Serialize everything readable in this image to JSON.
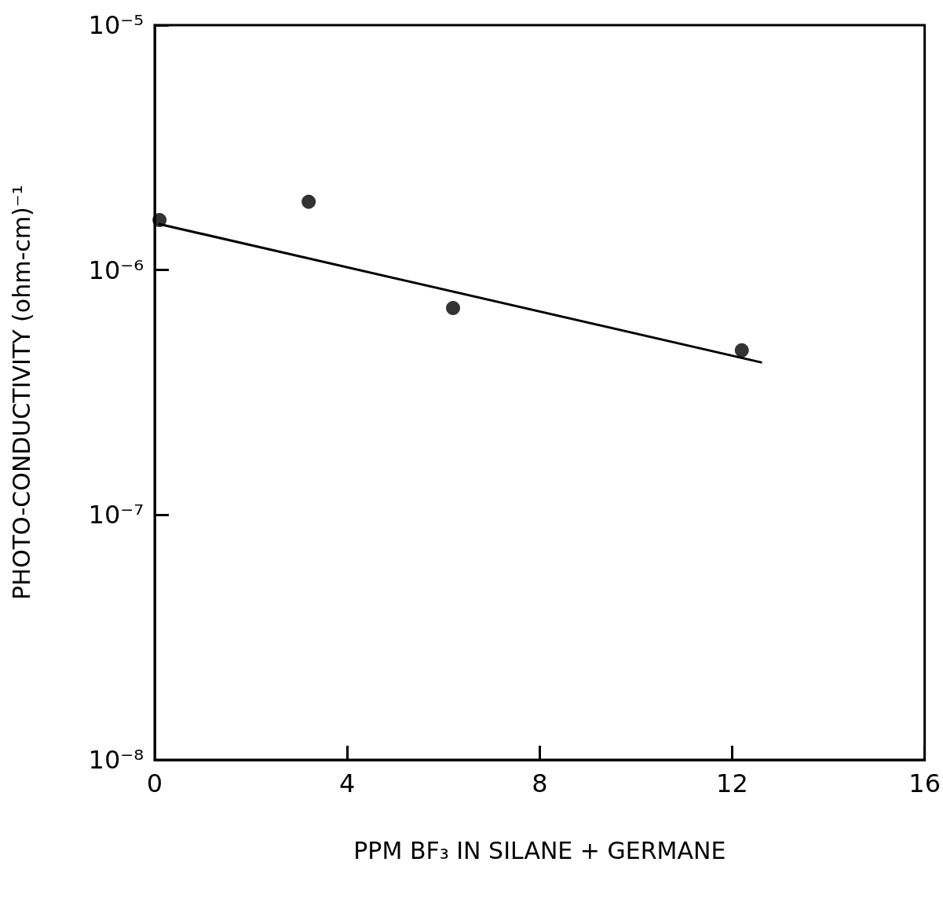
{
  "chart_data": {
    "type": "scatter",
    "xlabel": "PPM BF₃ IN SILANE + GERMANE",
    "ylabel": "PHOTO-CONDUCTIVITY (ohm-cm)⁻¹",
    "log": "y",
    "grid": false,
    "xlim": [
      0,
      16
    ],
    "xticks": [
      0,
      4,
      8,
      12,
      16
    ],
    "ylim": [
      1e-08,
      1e-05
    ],
    "yticks": [
      {
        "value": 1e-08,
        "label": "10⁻⁸"
      },
      {
        "value": 1e-07,
        "label": "10⁻⁷"
      },
      {
        "value": 1e-06,
        "label": "10⁻⁶"
      },
      {
        "value": 1e-05,
        "label": "10⁻⁵"
      }
    ],
    "series": [
      {
        "color": "#000000",
        "marker": "circle",
        "x": [
          0.1,
          3.2,
          6.2,
          12.2
        ],
        "values": [
          1.6e-06,
          1.9e-06,
          7e-07,
          4.7e-07
        ]
      },
      {
        "type": "line",
        "color": "#000000",
        "marker": "none",
        "line_style": "solid",
        "x": [
          0.1,
          12.6
        ],
        "values": [
          1.54e-06,
          4.2e-07
        ]
      }
    ]
  }
}
